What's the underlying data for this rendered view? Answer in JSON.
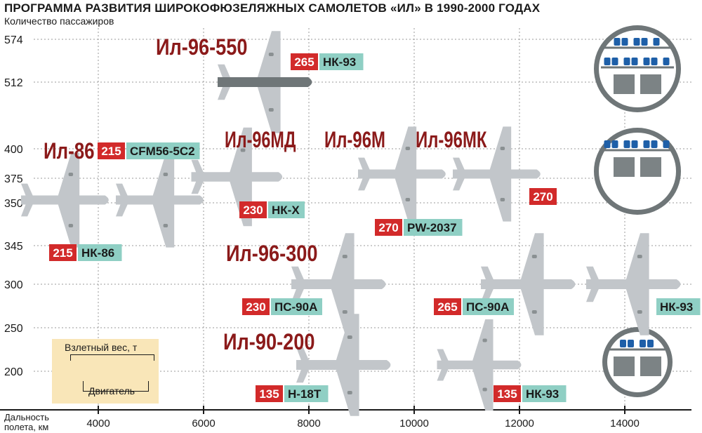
{
  "title": "ПРОГРАММА РАЗВИТИЯ ШИРОКОФЮЗЕЛЯЖНЫХ САМОЛЕТОВ «ИЛ» В 1990-2000 ГОДАХ",
  "colors": {
    "model_name": "#8b1a1a",
    "weight_badge": "#d22a2a",
    "engine_badge": "#8fcfc4",
    "plane": "#c2c6ca",
    "plane_dark": "#6f7678",
    "grid": "#9a9a9a",
    "legend_bg": "#f9e6b8"
  },
  "legend": {
    "weight_label": "Взлетный вес, т",
    "engine_label": "Двигатель",
    "sample_weight": "270",
    "sample_engine": "PW-2037"
  },
  "chart_data": {
    "type": "scatter",
    "title": "ПРОГРАММА РАЗВИТИЯ ШИРОКОФЮЗЕЛЯЖНЫХ САМОЛЕТОВ «ИЛ» В 1990-2000 ГОДАХ",
    "xlabel": "Дальность полета, км",
    "ylabel": "Количество пассажиров",
    "x_ticks": [
      4000,
      6000,
      8000,
      10000,
      12000,
      14000
    ],
    "y_ticks": [
      574,
      512,
      400,
      375,
      350,
      345,
      300,
      250,
      200
    ],
    "grid": true,
    "aircraft": [
      {
        "name": "Ил-96-550",
        "range_km": 7300,
        "passengers": 512,
        "weight_t": "265",
        "engine": "НК-93"
      },
      {
        "name": "Ил-86",
        "range_km": 3600,
        "passengers": 350,
        "weight_t": "215",
        "engine": "CFM56-5C2"
      },
      {
        "name": "",
        "range_km": 4700,
        "passengers": 350,
        "weight_t": "215",
        "engine": "НК-86"
      },
      {
        "name": "Ил-96МД",
        "range_km": 6800,
        "passengers": 375,
        "weight_t": "230",
        "engine": "НК-Х"
      },
      {
        "name": "Ил-96М",
        "range_km": 9300,
        "passengers": 375,
        "weight_t": "270",
        "engine": "PW-2037"
      },
      {
        "name": "Ил-96МК",
        "range_km": 11100,
        "passengers": 375,
        "weight_t": "270",
        "engine": ""
      },
      {
        "name": "Ил-96-300",
        "range_km": 9400,
        "passengers": 300,
        "weight_t": "230",
        "engine": "ПС-90А"
      },
      {
        "name": "",
        "range_km": 12400,
        "passengers": 300,
        "weight_t": "265",
        "engine": "ПС-90А"
      },
      {
        "name": "",
        "range_km": 14300,
        "passengers": 300,
        "weight_t": "",
        "engine": "НК-93"
      },
      {
        "name": "Ил-90-200",
        "range_km": 9400,
        "passengers": 200,
        "weight_t": "135",
        "engine": "Н-18Т"
      },
      {
        "name": "",
        "range_km": 11300,
        "passengers": 200,
        "weight_t": "135",
        "engine": "НК-93"
      }
    ]
  }
}
